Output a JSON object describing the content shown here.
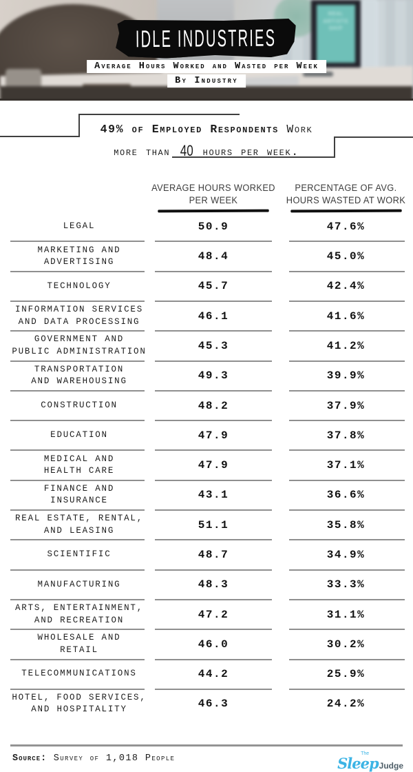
{
  "header": {
    "title": "IDLE INDUSTRIES",
    "subtitle_line1": "Average Hours Worked and Wasted per Week",
    "subtitle_line2": "By Industry",
    "poster": {
      "line1": "REAL",
      "line2": "ARTISTS",
      "line3": "SHIP"
    }
  },
  "callout": {
    "line1_bold": "49% of Employed Respondents",
    "line1_rest": " Work",
    "line2_pre": "more than ",
    "line2_number": "40",
    "line2_post": " hours per week."
  },
  "table": {
    "col2_header": {
      "line1": "AVERAGE HOURS WORKED",
      "line2": "PER WEEK"
    },
    "col3_header": {
      "line1": "PERCENTAGE OF AVG.",
      "line2": "HOURS WASTED AT WORK"
    },
    "rows": [
      {
        "label_lines": [
          "LEGAL"
        ],
        "hours": "50.9",
        "wasted": "47.6%"
      },
      {
        "label_lines": [
          "MARKETING AND",
          "ADVERTISING"
        ],
        "hours": "48.4",
        "wasted": "45.0%"
      },
      {
        "label_lines": [
          "TECHNOLOGY"
        ],
        "hours": "45.7",
        "wasted": "42.4%"
      },
      {
        "label_lines": [
          "INFORMATION SERVICES",
          "AND DATA PROCESSING"
        ],
        "hours": "46.1",
        "wasted": "41.6%"
      },
      {
        "label_lines": [
          "GOVERNMENT AND",
          "PUBLIC ADMINISTRATION"
        ],
        "hours": "45.3",
        "wasted": "41.2%"
      },
      {
        "label_lines": [
          "TRANSPORTATION",
          "AND WAREHOUSING"
        ],
        "hours": "49.3",
        "wasted": "39.9%"
      },
      {
        "label_lines": [
          "CONSTRUCTION"
        ],
        "hours": "48.2",
        "wasted": "37.9%"
      },
      {
        "label_lines": [
          "EDUCATION"
        ],
        "hours": "47.9",
        "wasted": "37.8%"
      },
      {
        "label_lines": [
          "MEDICAL AND",
          "HEALTH CARE"
        ],
        "hours": "47.9",
        "wasted": "37.1%"
      },
      {
        "label_lines": [
          "FINANCE AND",
          "INSURANCE"
        ],
        "hours": "43.1",
        "wasted": "36.6%"
      },
      {
        "label_lines": [
          "REAL ESTATE, RENTAL,",
          "AND LEASING"
        ],
        "hours": "51.1",
        "wasted": "35.8%"
      },
      {
        "label_lines": [
          "SCIENTIFIC"
        ],
        "hours": "48.7",
        "wasted": "34.9%"
      },
      {
        "label_lines": [
          "MANUFACTURING"
        ],
        "hours": "48.3",
        "wasted": "33.3%"
      },
      {
        "label_lines": [
          "ARTS, ENTERTAINMENT,",
          "AND RECREATION"
        ],
        "hours": "47.2",
        "wasted": "31.1%"
      },
      {
        "label_lines": [
          "WHOLESALE AND",
          "RETAIL"
        ],
        "hours": "46.0",
        "wasted": "30.2%"
      },
      {
        "label_lines": [
          "TELECOMMUNICATIONS"
        ],
        "hours": "44.2",
        "wasted": "25.9%"
      },
      {
        "label_lines": [
          "HOTEL, FOOD SERVICES,",
          "AND HOSPITALITY"
        ],
        "hours": "46.3",
        "wasted": "24.2%"
      }
    ]
  },
  "footer": {
    "source_label": "Source:",
    "source_text": " Survey of 1,018 People",
    "logo": {
      "the": "The",
      "sleep": "Sleep",
      "judge": "Judge"
    }
  },
  "chart_data": {
    "type": "table",
    "title": "Idle Industries — Average Hours Worked and Wasted per Week by Industry",
    "annotation": "49% of employed respondents work more than 40 hours per week.",
    "columns": [
      "Industry",
      "Average Hours Worked per Week",
      "Percentage of Avg. Hours Wasted at Work"
    ],
    "categories": [
      "Legal",
      "Marketing and Advertising",
      "Technology",
      "Information Services and Data Processing",
      "Government and Public Administration",
      "Transportation and Warehousing",
      "Construction",
      "Education",
      "Medical and Health Care",
      "Finance and Insurance",
      "Real Estate, Rental, and Leasing",
      "Scientific",
      "Manufacturing",
      "Arts, Entertainment, and Recreation",
      "Wholesale and Retail",
      "Telecommunications",
      "Hotel, Food Services, and Hospitality"
    ],
    "series": [
      {
        "name": "Average Hours Worked per Week",
        "values": [
          50.9,
          48.4,
          45.7,
          46.1,
          45.3,
          49.3,
          48.2,
          47.9,
          47.9,
          43.1,
          51.1,
          48.7,
          48.3,
          47.2,
          46.0,
          44.2,
          46.3
        ]
      },
      {
        "name": "Percentage of Avg. Hours Wasted at Work",
        "values": [
          47.6,
          45.0,
          42.4,
          41.6,
          41.2,
          39.9,
          37.9,
          37.8,
          37.1,
          36.6,
          35.8,
          34.9,
          33.3,
          31.1,
          30.2,
          25.9,
          24.2
        ]
      }
    ],
    "source": "Survey of 1,018 People"
  },
  "colors": {
    "logo_blue": "#3cb4e5",
    "poster_teal": "#6fc0b8",
    "separator_gray": "#8f8f8f",
    "banner_black": "#0b0b0b"
  }
}
